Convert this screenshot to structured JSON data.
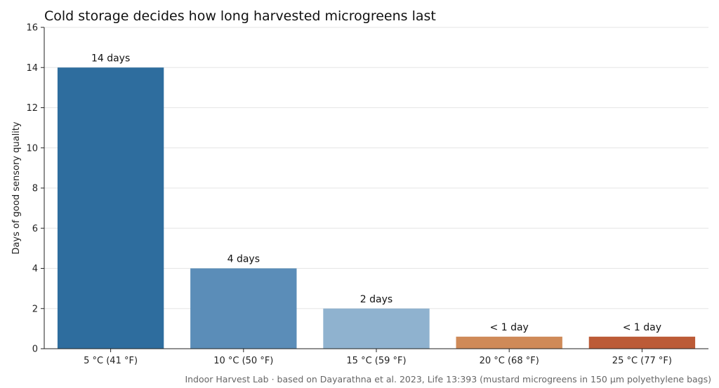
{
  "chart_data": {
    "type": "bar",
    "title": "Cold storage decides how long harvested microgreens last",
    "ylabel": "Days of good sensory quality",
    "xlabel": "",
    "ylim": [
      0,
      16
    ],
    "yticks": [
      0,
      2,
      4,
      6,
      8,
      10,
      12,
      14,
      16
    ],
    "grid": true,
    "categories": [
      "5 °C (41 °F)",
      "10 °C (50 °F)",
      "15 °C (59 °F)",
      "20 °C (68 °F)",
      "25 °C (77 °F)"
    ],
    "values": [
      14,
      4,
      2,
      0.6,
      0.6
    ],
    "data_labels": [
      "14 days",
      "4 days",
      "2 days",
      "< 1 day",
      "< 1 day"
    ],
    "colors": [
      "#2e6d9e",
      "#5b8db8",
      "#8fb2cf",
      "#cf8a58",
      "#bc5b37"
    ],
    "source": "Indoor Harvest Lab · based on Dayarathna et al. 2023, Life 13:393 (mustard microgreens in 150 µm polyethylene bags)"
  }
}
